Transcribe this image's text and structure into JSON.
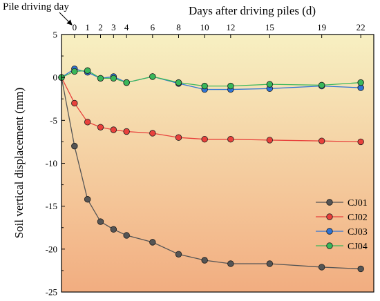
{
  "chart_data": {
    "type": "line",
    "title": "",
    "xlabel": "Days after driving piles (d)",
    "ylabel": "Soil vertical displacement (mm)",
    "annotation": "Pile driving day",
    "xlim": [
      -1,
      23
    ],
    "ylim": [
      -25,
      5
    ],
    "x_ticks": [
      0,
      1,
      2,
      3,
      4,
      6,
      8,
      10,
      12,
      15,
      19,
      22
    ],
    "y_ticks": [
      5,
      0,
      -5,
      -10,
      -15,
      -20,
      -25
    ],
    "x_axis_position": "top",
    "legend_position": "bottom-right",
    "grid": false,
    "background_gradient": [
      "#f7f0c2",
      "#f2ad80"
    ],
    "series": [
      {
        "name": "CJ01",
        "color": "#555555",
        "x": [
          -1,
          0,
          1,
          2,
          3,
          4,
          6,
          8,
          10,
          12,
          15,
          19,
          22
        ],
        "values": [
          0,
          -8.0,
          -14.2,
          -16.8,
          -17.7,
          -18.4,
          -19.2,
          -20.6,
          -21.3,
          -21.7,
          -21.7,
          -22.1,
          -22.3
        ]
      },
      {
        "name": "CJ02",
        "color": "#e8413c",
        "x": [
          -1,
          0,
          1,
          2,
          3,
          4,
          6,
          8,
          10,
          12,
          15,
          19,
          22
        ],
        "values": [
          0,
          -3.0,
          -5.2,
          -5.8,
          -6.1,
          -6.3,
          -6.5,
          -7.0,
          -7.2,
          -7.2,
          -7.3,
          -7.4,
          -7.5
        ]
      },
      {
        "name": "CJ03",
        "color": "#2f74d6",
        "x": [
          -1,
          0,
          1,
          2,
          3,
          4,
          6,
          8,
          10,
          12,
          15,
          19,
          22
        ],
        "values": [
          0,
          1.0,
          0.6,
          -0.1,
          0.1,
          -0.6,
          0.1,
          -0.7,
          -1.4,
          -1.4,
          -1.3,
          -1.0,
          -1.2
        ]
      },
      {
        "name": "CJ04",
        "color": "#3ab75a",
        "x": [
          -1,
          0,
          1,
          2,
          3,
          4,
          6,
          8,
          10,
          12,
          15,
          19,
          22
        ],
        "values": [
          0,
          0.7,
          0.8,
          -0.1,
          -0.1,
          -0.6,
          0.1,
          -0.6,
          -1.0,
          -1.0,
          -0.8,
          -0.9,
          -0.6
        ]
      }
    ]
  }
}
